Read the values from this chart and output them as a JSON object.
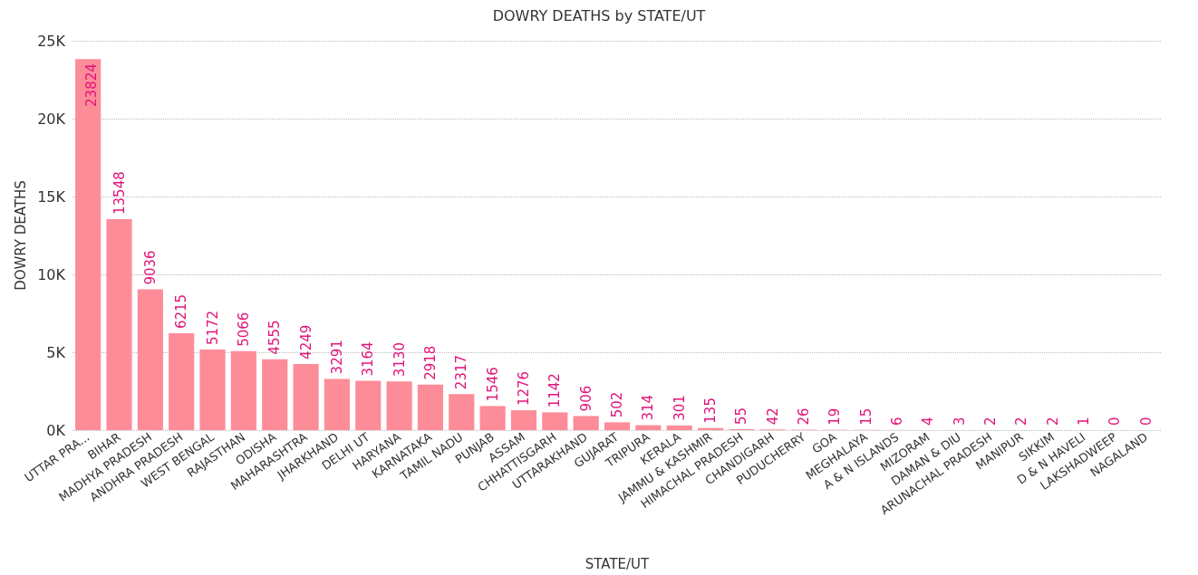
{
  "chart_data": {
    "type": "bar",
    "title": "DOWRY DEATHS by STATE/UT",
    "xlabel": "STATE/UT",
    "ylabel": "DOWRY DEATHS",
    "categories": [
      "UTTAR PRA...",
      "BIHAR",
      "MADHYA PRADESH",
      "ANDHRA PRADESH",
      "WEST BENGAL",
      "RAJASTHAN",
      "ODISHA",
      "MAHARASHTRA",
      "JHARKHAND",
      "DELHI UT",
      "HARYANA",
      "KARNATAKA",
      "TAMIL NADU",
      "PUNJAB",
      "ASSAM",
      "CHHATTISGARH",
      "UTTARAKHAND",
      "GUJARAT",
      "TRIPURA",
      "KERALA",
      "JAMMU & KASHMIR",
      "HIMACHAL PRADESH",
      "CHANDIGARH",
      "PUDUCHERRY",
      "GOA",
      "MEGHALAYA",
      "A & N ISLANDS",
      "MIZORAM",
      "DAMAN & DIU",
      "ARUNACHAL PRADESH",
      "MANIPUR",
      "SIKKIM",
      "D & N HAVELI",
      "LAKSHADWEEP",
      "NAGALAND"
    ],
    "values": [
      23824,
      13548,
      9036,
      6215,
      5172,
      5066,
      4555,
      4249,
      3291,
      3164,
      3130,
      2918,
      2317,
      1546,
      1276,
      1142,
      906,
      502,
      314,
      301,
      135,
      55,
      42,
      26,
      19,
      15,
      6,
      4,
      3,
      2,
      2,
      2,
      1,
      0,
      0
    ],
    "color": "#fd8c99",
    "ylim": [
      0,
      25000
    ],
    "yticks": [
      {
        "value": 0,
        "label": "0K"
      },
      {
        "value": 5000,
        "label": "5K"
      },
      {
        "value": 10000,
        "label": "10K"
      },
      {
        "value": 15000,
        "label": "15K"
      },
      {
        "value": 20000,
        "label": "20K"
      },
      {
        "value": 25000,
        "label": "25K"
      }
    ],
    "grid": "y",
    "data_labels": true
  }
}
